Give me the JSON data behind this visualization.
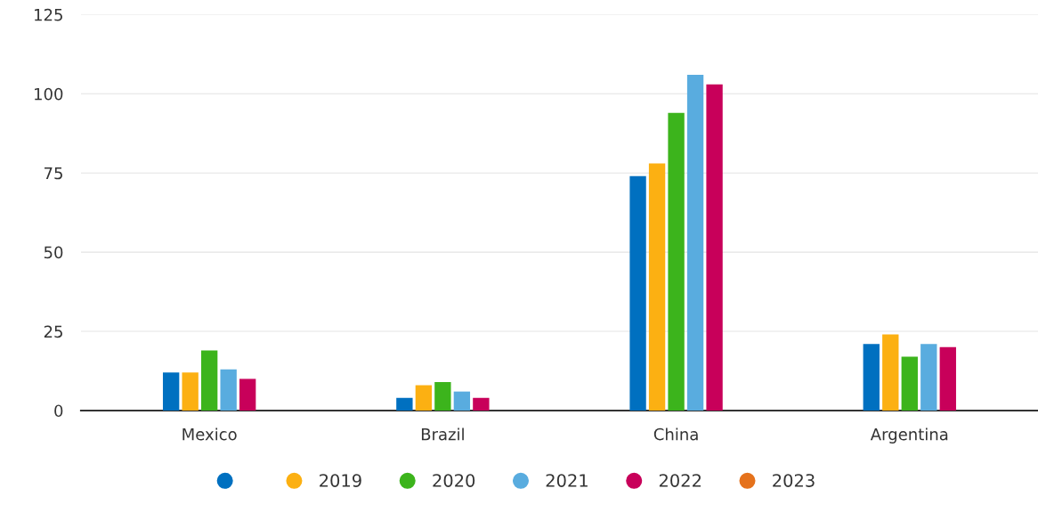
{
  "chart_data": {
    "type": "bar",
    "categories": [
      "Mexico",
      "Brazil",
      "China",
      "Argentina"
    ],
    "series": [
      {
        "color": "#0070c0",
        "values": [
          12,
          4,
          74,
          21
        ]
      },
      {
        "name": "2019",
        "color": "#fcb012",
        "values": [
          12,
          8,
          78,
          24
        ]
      },
      {
        "name": "2020",
        "color": "#3cb41c",
        "values": [
          19,
          9,
          94,
          17
        ]
      },
      {
        "name": "2021",
        "color": "#59acdf",
        "values": [
          13,
          6,
          106,
          21
        ]
      },
      {
        "name": "2022",
        "color": "#c8005a",
        "values": [
          10,
          4,
          103,
          20
        ]
      },
      {
        "name": "2023",
        "color": "#e5721c",
        "values": [
          null,
          null,
          null,
          null
        ]
      }
    ],
    "ylim": [
      0,
      125
    ],
    "yticks": [
      0,
      25,
      50,
      75,
      100,
      125
    ],
    "grid": "y",
    "legend": "bottom"
  }
}
